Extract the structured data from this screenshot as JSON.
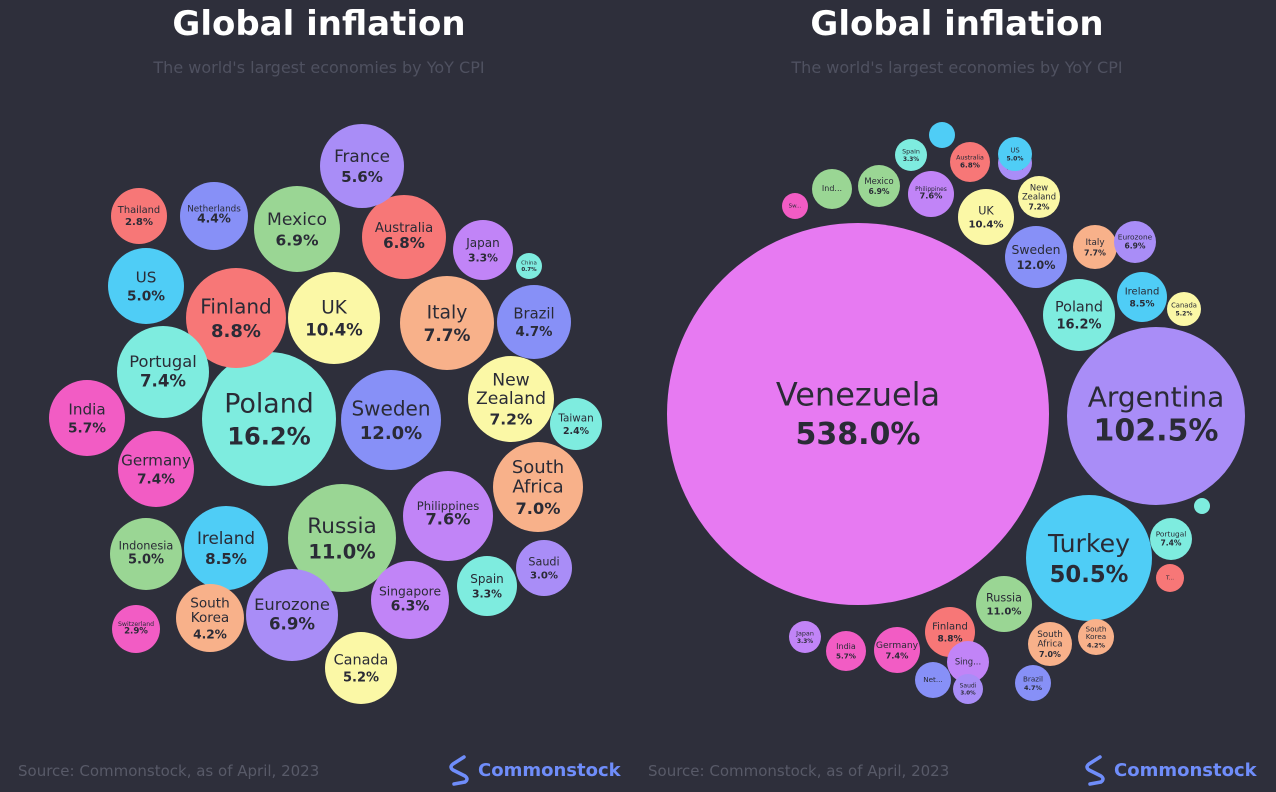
{
  "panels": [
    {
      "title": "Global inflation",
      "subtitle": "The world's largest economies by YoY CPI",
      "source": "Source: Commonstock, as of April, 2023",
      "brand": "Commonstock"
    },
    {
      "title": "Global inflation",
      "subtitle": "The world's largest economies by YoY CPI",
      "source": "Source: Commonstock, as of April, 2023",
      "brand": "Commonstock"
    }
  ],
  "colors": {
    "pink": "#f25cc4",
    "magenta": "#e77af2",
    "lavender": "#c184f7",
    "violet": "#a98df7",
    "periwinkle": "#8790f7",
    "blue": "#4fcdf6",
    "cyan": "#7eecdf",
    "green": "#9ad694",
    "yellow": "#fbf8a6",
    "orange": "#f8b18a",
    "red": "#f77777",
    "background": "#2e2f3b",
    "brand": "#6f8dfa"
  },
  "chart_data": [
    {
      "type": "bubble",
      "title": "Global inflation",
      "subtitle": "The world's largest economies by YoY CPI",
      "unit": "%",
      "bubbles": [
        {
          "name": "Poland",
          "value": 16.2,
          "label": "16.2%",
          "color": "cyan"
        },
        {
          "name": "UK",
          "value": 10.4,
          "label": "10.4%",
          "color": "yellow"
        },
        {
          "name": "Russia",
          "value": 11.0,
          "label": "11.0%",
          "color": "green"
        },
        {
          "name": "Sweden",
          "value": 12.0,
          "label": "12.0%",
          "color": "periwinkle"
        },
        {
          "name": "Finland",
          "value": 8.8,
          "label": "8.8%",
          "color": "red"
        },
        {
          "name": "Ireland",
          "value": 8.5,
          "label": "8.5%",
          "color": "blue"
        },
        {
          "name": "Italy",
          "value": 7.7,
          "label": "7.7%",
          "color": "orange"
        },
        {
          "name": "Germany",
          "value": 7.4,
          "label": "7.4%",
          "color": "pink"
        },
        {
          "name": "Portugal",
          "value": 7.4,
          "label": "7.4%",
          "color": "cyan"
        },
        {
          "name": "New Zealand",
          "value": 7.2,
          "label": "7.2%",
          "color": "yellow"
        },
        {
          "name": "South Africa",
          "value": 7.0,
          "label": "7.0%",
          "color": "orange"
        },
        {
          "name": "Philippines",
          "value": 7.6,
          "label": "7.6%",
          "color": "lavender"
        },
        {
          "name": "Mexico",
          "value": 6.9,
          "label": "6.9%",
          "color": "green"
        },
        {
          "name": "Eurozone",
          "value": 6.9,
          "label": "6.9%",
          "color": "violet"
        },
        {
          "name": "Australia",
          "value": 6.8,
          "label": "6.8%",
          "color": "red"
        },
        {
          "name": "Singapore",
          "value": 6.3,
          "label": "6.3%",
          "color": "lavender"
        },
        {
          "name": "India",
          "value": 5.7,
          "label": "5.7%",
          "color": "pink"
        },
        {
          "name": "France",
          "value": 5.6,
          "label": "5.6%",
          "color": "violet"
        },
        {
          "name": "Canada",
          "value": 5.2,
          "label": "5.2%",
          "color": "yellow"
        },
        {
          "name": "US",
          "value": 5.0,
          "label": "5.0%",
          "color": "blue"
        },
        {
          "name": "Indonesia",
          "value": 5.0,
          "label": "5.0%",
          "color": "green"
        },
        {
          "name": "Brazil",
          "value": 4.7,
          "label": "4.7%",
          "color": "periwinkle"
        },
        {
          "name": "Netherlands",
          "value": 4.4,
          "label": "4.4%",
          "color": "periwinkle"
        },
        {
          "name": "South Korea",
          "value": 4.2,
          "label": "4.2%",
          "color": "orange"
        },
        {
          "name": "Japan",
          "value": 3.3,
          "label": "3.3%",
          "color": "lavender"
        },
        {
          "name": "Spain",
          "value": 3.3,
          "label": "3.3%",
          "color": "cyan"
        },
        {
          "name": "Saudi",
          "value": 3.0,
          "label": "3.0%",
          "color": "violet"
        },
        {
          "name": "Thailand",
          "value": 2.8,
          "label": "2.8%",
          "color": "red"
        },
        {
          "name": "Switzerland",
          "value": 2.9,
          "label": "2.9%",
          "color": "pink"
        },
        {
          "name": "Taiwan",
          "value": 2.4,
          "label": "2.4%",
          "color": "cyan"
        },
        {
          "name": "China",
          "value": 0.7,
          "label": "0.7%",
          "color": "cyan"
        }
      ]
    },
    {
      "type": "bubble",
      "title": "Global inflation",
      "subtitle": "The world's largest economies by YoY CPI",
      "unit": "%",
      "bubbles": [
        {
          "name": "Venezuela",
          "value": 538.0,
          "label": "538.0%",
          "color": "magenta"
        },
        {
          "name": "Argentina",
          "value": 102.5,
          "label": "102.5%",
          "color": "violet"
        },
        {
          "name": "Turkey",
          "value": 50.5,
          "label": "50.5%",
          "color": "blue"
        },
        {
          "name": "Poland",
          "value": 16.2,
          "label": "16.2%",
          "color": "cyan"
        },
        {
          "name": "Sweden",
          "value": 12.0,
          "label": "12.0%",
          "color": "periwinkle"
        },
        {
          "name": "Russia",
          "value": 11.0,
          "label": "11.0%",
          "color": "green"
        },
        {
          "name": "UK",
          "value": 10.4,
          "label": "10.4%",
          "color": "yellow"
        },
        {
          "name": "Finland",
          "value": 8.8,
          "label": "8.8%",
          "color": "red"
        },
        {
          "name": "Ireland",
          "value": 8.5,
          "label": "8.5%",
          "color": "blue"
        },
        {
          "name": "Italy",
          "value": 7.7,
          "label": "7.7%",
          "color": "orange"
        },
        {
          "name": "Philippines",
          "value": null,
          "label": "7.6%",
          "color": "lavender"
        },
        {
          "name": "Germany",
          "value": 7.4,
          "label": "7.4%",
          "color": "pink"
        },
        {
          "name": "Portugal",
          "value": 7.4,
          "label": "7.4%",
          "color": "cyan"
        },
        {
          "name": "New Zealand",
          "value": 7.2,
          "label": "7.2%",
          "color": "yellow"
        },
        {
          "name": "South Africa",
          "value": 7.0,
          "label": "7.0%",
          "color": "orange"
        },
        {
          "name": "Mexico",
          "value": 6.9,
          "label": "6.9%",
          "color": "green"
        },
        {
          "name": "Eurozone",
          "value": 6.9,
          "label": "6.9%",
          "color": "violet"
        },
        {
          "name": "Australia",
          "value": 6.8,
          "label": "6.8%",
          "color": "red"
        },
        {
          "name": "Sing...",
          "value": null,
          "label": "",
          "color": "lavender"
        },
        {
          "name": "India",
          "value": 5.7,
          "label": "5.7%",
          "color": "pink"
        },
        {
          "name": "France",
          "value": 5.6,
          "label": "5.6%",
          "color": "violet"
        },
        {
          "name": "Canada",
          "value": 5.2,
          "label": "5.2%",
          "color": "yellow"
        },
        {
          "name": "US",
          "value": 5.0,
          "label": "5.0%",
          "color": "blue"
        },
        {
          "name": "Ind...",
          "value": null,
          "label": "",
          "color": "green"
        },
        {
          "name": "Brazil",
          "value": 4.7,
          "label": "4.7%",
          "color": "periwinkle"
        },
        {
          "name": "Net...",
          "value": null,
          "label": "",
          "color": "periwinkle"
        },
        {
          "name": "South Korea",
          "value": 4.2,
          "label": "4.2%",
          "color": "orange"
        },
        {
          "name": "Japan",
          "value": 3.3,
          "label": "3.3%",
          "color": "lavender"
        },
        {
          "name": "Spain",
          "value": 3.3,
          "label": "3.3%",
          "color": "cyan"
        },
        {
          "name": "Saudi",
          "value": 3.0,
          "label": "3.0%",
          "color": "violet"
        },
        {
          "name": "T...",
          "value": null,
          "label": "",
          "color": "red"
        },
        {
          "name": "Sw...",
          "value": null,
          "label": "",
          "color": "pink"
        },
        {
          "name": "",
          "value": null,
          "label": "",
          "color": "blue"
        },
        {
          "name": "",
          "value": null,
          "label": "",
          "color": "cyan"
        }
      ]
    }
  ]
}
